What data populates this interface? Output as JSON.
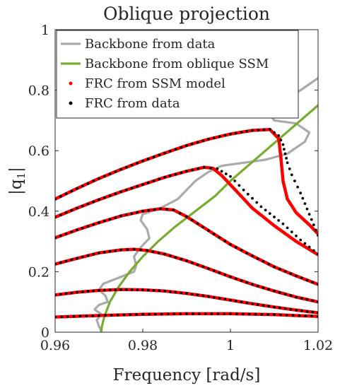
{
  "chart_data": {
    "type": "line",
    "title": "Oblique projection",
    "xlabel": "Frequency [rad/s]",
    "ylabel_main": "|q",
    "ylabel_sub": "1",
    "ylabel_close": "|",
    "xlim": [
      0.96,
      1.02
    ],
    "ylim": [
      0,
      1
    ],
    "xticks": [
      0.96,
      0.98,
      1,
      1.02
    ],
    "xtick_labels": [
      "0.96",
      "0.98",
      "1",
      "1.02"
    ],
    "yticks": [
      0,
      0.2,
      0.4,
      0.6,
      0.8,
      1
    ],
    "ytick_labels": [
      "0",
      "0.2",
      "0.4",
      "0.6",
      "0.8",
      "1"
    ],
    "grid": false,
    "legend_position": "top-left",
    "colors": {
      "backbone_data": "#aaaaaa",
      "backbone_ssm": "#77ac30",
      "frc_model": "#ff0000",
      "frc_data": "#000000"
    },
    "legend": [
      {
        "label": "Backbone from data",
        "style": "line",
        "color": "#aaaaaa"
      },
      {
        "label": "Backbone from oblique SSM",
        "style": "line",
        "color": "#77ac30"
      },
      {
        "label": "FRC from SSM model",
        "style": "dot",
        "color": "#ff0000"
      },
      {
        "label": "FRC from data",
        "style": "dot",
        "color": "#000000"
      }
    ],
    "series": [
      {
        "name": "Backbone from data",
        "kind": "line",
        "points": [
          [
            0.9705,
            0.005
          ],
          [
            0.97,
            0.02
          ],
          [
            0.9695,
            0.04
          ],
          [
            0.9705,
            0.06
          ],
          [
            0.969,
            0.075
          ],
          [
            0.97,
            0.09
          ],
          [
            0.972,
            0.1
          ],
          [
            0.9715,
            0.12
          ],
          [
            0.97,
            0.14
          ],
          [
            0.971,
            0.16
          ],
          [
            0.9745,
            0.18
          ],
          [
            0.978,
            0.2
          ],
          [
            0.9785,
            0.22
          ],
          [
            0.978,
            0.25
          ],
          [
            0.9795,
            0.28
          ],
          [
            0.9815,
            0.31
          ],
          [
            0.981,
            0.34
          ],
          [
            0.9795,
            0.37
          ],
          [
            0.98,
            0.39
          ],
          [
            0.984,
            0.41
          ],
          [
            0.988,
            0.44
          ],
          [
            0.99,
            0.47
          ],
          [
            0.992,
            0.5
          ],
          [
            0.995,
            0.53
          ],
          [
            0.998,
            0.55
          ],
          [
            1.003,
            0.56
          ],
          [
            1.008,
            0.57
          ],
          [
            1.013,
            0.59
          ],
          [
            1.017,
            0.63
          ],
          [
            1.018,
            0.66
          ],
          [
            1.015,
            0.69
          ],
          [
            1.01,
            0.7
          ],
          [
            1.009,
            0.72
          ],
          [
            1.014,
            0.78
          ],
          [
            1.02,
            0.84
          ],
          [
            1.028,
            0.87
          ],
          [
            1.036,
            0.88
          ]
        ]
      },
      {
        "name": "Backbone from oblique SSM",
        "kind": "line",
        "points": [
          [
            0.9705,
            0.0
          ],
          [
            0.9707,
            0.02
          ],
          [
            0.9712,
            0.05
          ],
          [
            0.9725,
            0.1
          ],
          [
            0.9745,
            0.15
          ],
          [
            0.977,
            0.2
          ],
          [
            0.98,
            0.25
          ],
          [
            0.9835,
            0.3
          ],
          [
            0.9875,
            0.35
          ],
          [
            0.992,
            0.4
          ],
          [
            0.9965,
            0.45
          ],
          [
            1.0,
            0.5
          ],
          [
            1.004,
            0.55
          ],
          [
            1.008,
            0.6
          ],
          [
            1.012,
            0.65
          ],
          [
            1.016,
            0.7
          ],
          [
            1.02,
            0.75
          ],
          [
            1.022,
            0.78
          ]
        ]
      },
      {
        "name": "FRC from SSM model",
        "kind": "dots",
        "curves": [
          [
            [
              0.96,
              0.05
            ],
            [
              0.97,
              0.055
            ],
            [
              0.98,
              0.059
            ],
            [
              0.99,
              0.061
            ],
            [
              1.0,
              0.061
            ],
            [
              1.01,
              0.058
            ],
            [
              1.02,
              0.052
            ]
          ],
          [
            [
              0.96,
              0.123
            ],
            [
              0.965,
              0.132
            ],
            [
              0.97,
              0.138
            ],
            [
              0.975,
              0.141
            ],
            [
              0.98,
              0.14
            ],
            [
              0.985,
              0.136
            ],
            [
              0.99,
              0.128
            ],
            [
              0.995,
              0.118
            ],
            [
              1.0,
              0.106
            ],
            [
              1.005,
              0.094
            ],
            [
              1.01,
              0.083
            ],
            [
              1.015,
              0.073
            ],
            [
              1.02,
              0.064
            ]
          ],
          [
            [
              0.96,
              0.225
            ],
            [
              0.965,
              0.244
            ],
            [
              0.97,
              0.262
            ],
            [
              0.975,
              0.272
            ],
            [
              0.978,
              0.274
            ],
            [
              0.981,
              0.27
            ],
            [
              0.985,
              0.258
            ],
            [
              0.99,
              0.236
            ],
            [
              0.995,
              0.21
            ],
            [
              1.0,
              0.183
            ],
            [
              1.005,
              0.158
            ],
            [
              1.01,
              0.136
            ],
            [
              1.015,
              0.116
            ],
            [
              1.02,
              0.1
            ]
          ],
          [
            [
              0.96,
              0.312
            ],
            [
              0.965,
              0.338
            ],
            [
              0.97,
              0.362
            ],
            [
              0.975,
              0.384
            ],
            [
              0.98,
              0.4
            ],
            [
              0.984,
              0.408
            ],
            [
              0.987,
              0.404
            ],
            [
              0.99,
              0.382
            ],
            [
              0.995,
              0.336
            ],
            [
              1.0,
              0.29
            ],
            [
              1.005,
              0.252
            ],
            [
              1.01,
              0.216
            ],
            [
              1.015,
              0.186
            ],
            [
              1.02,
              0.158
            ]
          ],
          [
            [
              0.96,
              0.38
            ],
            [
              0.965,
              0.41
            ],
            [
              0.97,
              0.438
            ],
            [
              0.975,
              0.464
            ],
            [
              0.98,
              0.488
            ],
            [
              0.985,
              0.512
            ],
            [
              0.99,
              0.532
            ],
            [
              0.994,
              0.545
            ],
            [
              0.996,
              0.542
            ],
            [
              0.998,
              0.518
            ],
            [
              1.001,
              0.472
            ],
            [
              1.005,
              0.41
            ],
            [
              1.01,
              0.352
            ],
            [
              1.015,
              0.3
            ],
            [
              1.02,
              0.256
            ]
          ],
          [
            [
              0.96,
              0.44
            ],
            [
              0.965,
              0.475
            ],
            [
              0.97,
              0.508
            ],
            [
              0.975,
              0.538
            ],
            [
              0.98,
              0.566
            ],
            [
              0.985,
              0.592
            ],
            [
              0.99,
              0.617
            ],
            [
              0.995,
              0.638
            ],
            [
              1.0,
              0.655
            ],
            [
              1.005,
              0.667
            ],
            [
              1.009,
              0.67
            ],
            [
              1.011,
              0.64
            ],
            [
              1.0115,
              0.58
            ],
            [
              1.012,
              0.5
            ],
            [
              1.013,
              0.44
            ],
            [
              1.015,
              0.395
            ],
            [
              1.018,
              0.355
            ],
            [
              1.02,
              0.325
            ]
          ]
        ]
      },
      {
        "name": "FRC from data",
        "kind": "dots",
        "curves": [
          [
            [
              0.96,
              0.05
            ],
            [
              0.97,
              0.055
            ],
            [
              0.98,
              0.059
            ],
            [
              0.99,
              0.061
            ],
            [
              1.0,
              0.061
            ],
            [
              1.01,
              0.058
            ],
            [
              1.02,
              0.052
            ]
          ],
          [
            [
              0.96,
              0.123
            ],
            [
              0.965,
              0.132
            ],
            [
              0.97,
              0.138
            ],
            [
              0.975,
              0.141
            ],
            [
              0.98,
              0.14
            ],
            [
              0.985,
              0.136
            ],
            [
              0.99,
              0.128
            ],
            [
              0.995,
              0.118
            ],
            [
              1.0,
              0.106
            ],
            [
              1.005,
              0.094
            ],
            [
              1.01,
              0.083
            ],
            [
              1.015,
              0.073
            ],
            [
              1.02,
              0.064
            ]
          ],
          [
            [
              0.96,
              0.225
            ],
            [
              0.965,
              0.244
            ],
            [
              0.97,
              0.262
            ],
            [
              0.975,
              0.272
            ],
            [
              0.978,
              0.274
            ],
            [
              0.981,
              0.27
            ],
            [
              0.985,
              0.258
            ],
            [
              0.99,
              0.236
            ],
            [
              0.995,
              0.21
            ],
            [
              1.0,
              0.183
            ],
            [
              1.005,
              0.158
            ],
            [
              1.01,
              0.136
            ],
            [
              1.015,
              0.116
            ],
            [
              1.02,
              0.1
            ]
          ],
          [
            [
              0.96,
              0.312
            ],
            [
              0.965,
              0.338
            ],
            [
              0.97,
              0.362
            ],
            [
              0.975,
              0.384
            ],
            [
              0.98,
              0.4
            ],
            [
              0.984,
              0.408
            ],
            [
              0.987,
              0.404
            ],
            [
              0.99,
              0.382
            ],
            [
              0.995,
              0.336
            ],
            [
              1.0,
              0.29
            ],
            [
              1.005,
              0.252
            ],
            [
              1.01,
              0.216
            ],
            [
              1.015,
              0.186
            ],
            [
              1.02,
              0.158
            ]
          ],
          [
            [
              0.96,
              0.38
            ],
            [
              0.965,
              0.41
            ],
            [
              0.97,
              0.438
            ],
            [
              0.975,
              0.464
            ],
            [
              0.98,
              0.488
            ],
            [
              0.985,
              0.512
            ],
            [
              0.99,
              0.532
            ],
            [
              0.994,
              0.545
            ],
            [
              0.997,
              0.54
            ],
            [
              1.0,
              0.515
            ],
            [
              1.003,
              0.47
            ],
            [
              1.007,
              0.415
            ],
            [
              1.012,
              0.358
            ],
            [
              1.016,
              0.305
            ],
            [
              1.02,
              0.258
            ]
          ],
          [
            [
              0.96,
              0.44
            ],
            [
              0.965,
              0.475
            ],
            [
              0.97,
              0.508
            ],
            [
              0.975,
              0.538
            ],
            [
              0.98,
              0.566
            ],
            [
              0.985,
              0.592
            ],
            [
              0.99,
              0.617
            ],
            [
              0.995,
              0.638
            ],
            [
              1.0,
              0.655
            ],
            [
              1.005,
              0.667
            ],
            [
              1.009,
              0.67
            ],
            [
              1.011,
              0.65
            ],
            [
              1.012,
              0.62
            ],
            [
              1.0125,
              0.59
            ],
            [
              1.013,
              0.56
            ],
            [
              1.014,
              0.52
            ],
            [
              1.016,
              0.46
            ],
            [
              1.018,
              0.39
            ],
            [
              1.02,
              0.32
            ]
          ]
        ]
      }
    ]
  }
}
